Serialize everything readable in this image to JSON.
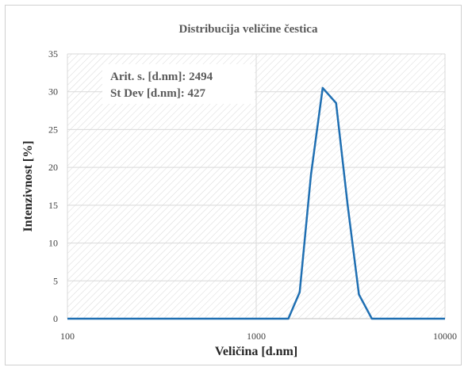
{
  "chart_data": {
    "type": "line",
    "title": "Distribucija  veličine čestica",
    "xlabel": "Veličina  [d.nm]",
    "ylabel": "Intenzivnost  [%]",
    "x_scale": "log",
    "xlim": [
      100,
      10000
    ],
    "ylim": [
      0,
      35
    ],
    "x_ticks": [
      "100",
      "1000",
      "10000"
    ],
    "y_ticks": [
      "0",
      "5",
      "10",
      "15",
      "20",
      "25",
      "30",
      "35"
    ],
    "grid": true,
    "line_color": "#1f6fb2",
    "annotations": [
      "Arit. s. [d.nm]: 2494",
      "St Dev [d.nm]: 427"
    ],
    "series": [
      {
        "x": [
          100,
          1000,
          1480,
          1700,
          1950,
          2250,
          2650,
          3050,
          3500,
          4100,
          10000
        ],
        "values": [
          0,
          0,
          0,
          3.5,
          19,
          30.5,
          28.5,
          15,
          3.2,
          0,
          0
        ]
      }
    ]
  }
}
